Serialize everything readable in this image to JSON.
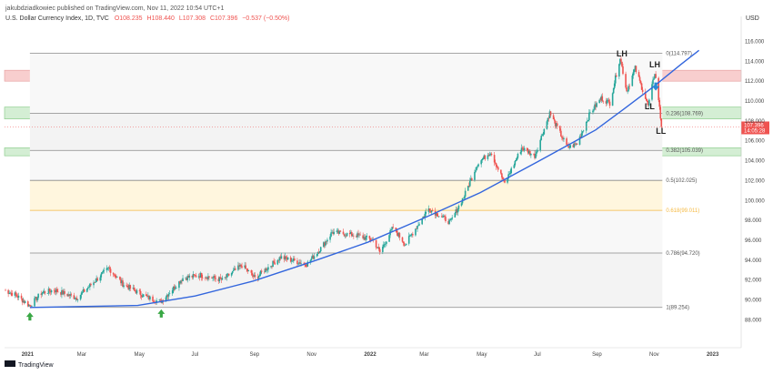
{
  "header": {
    "publisher": "jakubdziadkowiec published on TradingView.com, Nov 11, 2022 10:54 UTC+1",
    "symbol_line": "U.S. Dollar Currency Index, 1D, TVC",
    "open": "O108.235",
    "high": "H108.440",
    "low": "L107.308",
    "close": "C107.396",
    "change": "−0.537 (−0.50%)"
  },
  "footer": {
    "brand": "TradingView"
  },
  "colors": {
    "up": "#26a69a",
    "down": "#ef5350",
    "trend": "#3366dd",
    "price_tag": "#ef5350",
    "resistance_zone": "#f7c6c6",
    "support_zone": "#cdeccd",
    "golden_band": "#fff6de",
    "fib_line": "#888888",
    "fib_golden": "#f5b942",
    "arrow_up": "#3aa845",
    "arrow_down": "#2a8ad4"
  },
  "chart_data": {
    "type": "candlestick",
    "title": "U.S. Dollar Currency Index, 1D, TVC",
    "ylabel": "USD",
    "ylim": [
      86.3,
      117.6
    ],
    "x_range": [
      "2020-12-10",
      "2023-02-03"
    ],
    "x_ticks": [
      {
        "label": "2021",
        "date": "2021-01-01",
        "bold": true
      },
      {
        "label": "Mar",
        "date": "2021-03-01"
      },
      {
        "label": "May",
        "date": "2021-05-01"
      },
      {
        "label": "Jul",
        "date": "2021-07-01"
      },
      {
        "label": "Sep",
        "date": "2021-09-01"
      },
      {
        "label": "Nov",
        "date": "2021-11-01"
      },
      {
        "label": "2022",
        "date": "2022-01-01",
        "bold": true
      },
      {
        "label": "Mar",
        "date": "2022-03-01"
      },
      {
        "label": "May",
        "date": "2022-05-01"
      },
      {
        "label": "Jul",
        "date": "2022-07-01"
      },
      {
        "label": "Sep",
        "date": "2022-09-01"
      },
      {
        "label": "Nov",
        "date": "2022-11-01"
      },
      {
        "label": "2023",
        "date": "2023-01-01",
        "bold": true
      }
    ],
    "y_ticks": [
      "88.000",
      "90.000",
      "92.000",
      "94.000",
      "96.000",
      "98.000",
      "100.000",
      "102.000",
      "104.000",
      "106.000",
      "108.000",
      "110.000",
      "112.000",
      "114.000",
      "116.000"
    ],
    "last_price": {
      "value": "107.396",
      "time": "14:05:28",
      "level": 107.396
    },
    "price_anchors": [
      [
        "2020-12-10",
        91.0
      ],
      [
        "2020-12-22",
        90.5
      ],
      [
        "2021-01-06",
        89.4
      ],
      [
        "2021-01-18",
        90.7
      ],
      [
        "2021-02-01",
        91.0
      ],
      [
        "2021-02-25",
        90.2
      ],
      [
        "2021-03-31",
        93.2
      ],
      [
        "2021-04-15",
        91.6
      ],
      [
        "2021-05-10",
        90.3
      ],
      [
        "2021-05-25",
        89.8
      ],
      [
        "2021-06-18",
        92.2
      ],
      [
        "2021-07-07",
        92.5
      ],
      [
        "2021-07-30",
        92.0
      ],
      [
        "2021-08-20",
        93.5
      ],
      [
        "2021-09-03",
        92.2
      ],
      [
        "2021-09-30",
        94.3
      ],
      [
        "2021-10-28",
        93.6
      ],
      [
        "2021-11-12",
        95.2
      ],
      [
        "2021-11-24",
        96.8
      ],
      [
        "2021-12-20",
        96.5
      ],
      [
        "2022-01-07",
        96.0
      ],
      [
        "2022-01-14",
        94.8
      ],
      [
        "2022-01-28",
        97.3
      ],
      [
        "2022-02-10",
        95.6
      ],
      [
        "2022-03-07",
        99.2
      ],
      [
        "2022-03-30",
        97.8
      ],
      [
        "2022-04-14",
        100.5
      ],
      [
        "2022-04-28",
        103.7
      ],
      [
        "2022-05-12",
        104.9
      ],
      [
        "2022-05-27",
        101.7
      ],
      [
        "2022-06-14",
        105.3
      ],
      [
        "2022-06-28",
        104.5
      ],
      [
        "2022-07-14",
        108.8
      ],
      [
        "2022-08-02",
        105.3
      ],
      [
        "2022-08-12",
        105.7
      ],
      [
        "2022-08-26",
        108.8
      ],
      [
        "2022-09-07",
        110.3
      ],
      [
        "2022-09-16",
        109.8
      ],
      [
        "2022-09-27",
        114.4
      ],
      [
        "2022-10-04",
        111.0
      ],
      [
        "2022-10-13",
        113.3
      ],
      [
        "2022-10-27",
        109.5
      ],
      [
        "2022-11-03",
        112.9
      ],
      [
        "2022-11-07",
        110.2
      ],
      [
        "2022-11-10",
        107.4
      ]
    ],
    "fib_levels": [
      {
        "ratio": "0",
        "label": "0(114.797)",
        "value": 114.797
      },
      {
        "ratio": "0.236",
        "label": "0.236(108.769)",
        "value": 108.769
      },
      {
        "ratio": "0.382",
        "label": "0.382(105.039)",
        "value": 105.039
      },
      {
        "ratio": "0.5",
        "label": "0.5(102.025)",
        "value": 102.025
      },
      {
        "ratio": "0.618",
        "label": "0.618(99.011)",
        "value": 99.011
      },
      {
        "ratio": "0.786",
        "label": "0.786(94.720)",
        "value": 94.72
      },
      {
        "ratio": "1",
        "label": "1(89.254)",
        "value": 89.254
      }
    ],
    "fib_range": {
      "start": "2021-01-06",
      "end": "2022-11-11"
    },
    "zones": [
      {
        "name": "resistance",
        "from": 112.0,
        "to": 113.1,
        "start": "2020-12-10",
        "end": "2023-02-03"
      },
      {
        "name": "support-upper",
        "from": 108.2,
        "to": 109.4,
        "start": "2020-12-10",
        "end": "2023-02-03"
      },
      {
        "name": "support-lower",
        "from": 104.5,
        "to": 105.3,
        "start": "2020-12-10",
        "end": "2023-02-03"
      }
    ],
    "trendline": {
      "points": [
        [
          "2021-01-06",
          89.25
        ],
        [
          "2021-05-01",
          89.45
        ],
        [
          "2021-07-01",
          90.4
        ],
        [
          "2021-09-01",
          91.9
        ],
        [
          "2021-11-01",
          93.8
        ],
        [
          "2022-01-01",
          95.8
        ],
        [
          "2022-03-01",
          98.2
        ],
        [
          "2022-05-01",
          100.8
        ],
        [
          "2022-07-01",
          103.9
        ],
        [
          "2022-09-01",
          107.1
        ],
        [
          "2022-10-01",
          109.2
        ],
        [
          "2022-11-01",
          111.4
        ],
        [
          "2022-12-01",
          113.7
        ],
        [
          "2022-12-20",
          115.1
        ]
      ]
    },
    "annotations": [
      {
        "text": "LH",
        "date": "2022-09-28",
        "level": 114.5
      },
      {
        "text": "LH",
        "date": "2022-11-02",
        "level": 113.4
      },
      {
        "text": "LL",
        "date": "2022-10-28",
        "level": 109.2
      },
      {
        "text": "LL",
        "date": "2022-11-09",
        "level": 106.7
      }
    ],
    "arrows": [
      {
        "dir": "up",
        "date": "2021-01-06",
        "level": 88.3
      },
      {
        "dir": "up",
        "date": "2021-05-26",
        "level": 88.6
      },
      {
        "dir": "down",
        "date": "2022-11-04",
        "level": 111.5
      }
    ]
  }
}
